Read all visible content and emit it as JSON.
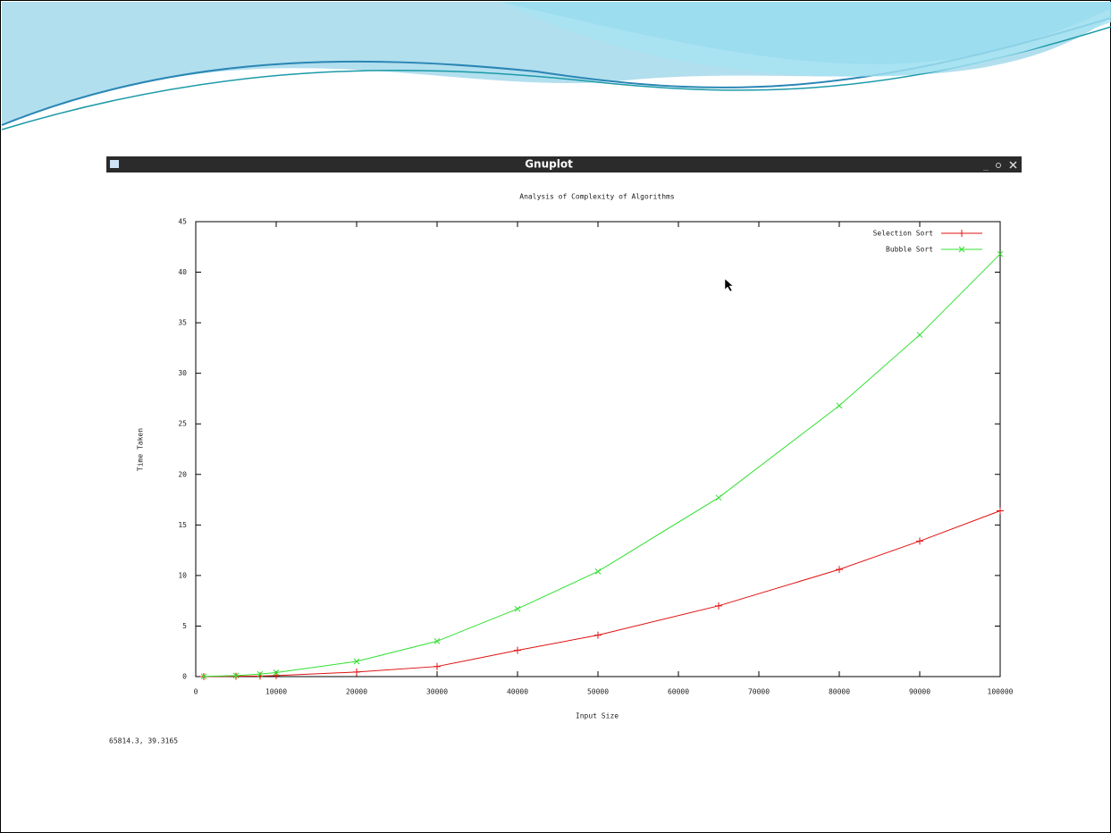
{
  "window": {
    "title": "Gnuplot",
    "status": "65814.3,  39.3165"
  },
  "chart_data": {
    "type": "line",
    "title": "Analysis of Complexity of Algorithms",
    "x_label": "Input Size",
    "y_label": "Time Taken",
    "x": [
      1000,
      5000,
      8000,
      10000,
      20000,
      30000,
      40000,
      50000,
      65000,
      80000,
      90000,
      100000
    ],
    "series": [
      {
        "name": "Selection Sort",
        "color": "#e01010",
        "marker": "plus",
        "values": [
          0,
          0.03,
          0.06,
          0.1,
          0.45,
          1.0,
          2.6,
          4.1,
          7.0,
          10.6,
          13.4,
          16.4
        ]
      },
      {
        "name": "Bubble Sort",
        "color": "#30e030",
        "marker": "cross",
        "values": [
          0.02,
          0.1,
          0.25,
          0.4,
          1.5,
          3.5,
          6.7,
          10.4,
          17.7,
          26.8,
          33.8,
          41.8
        ]
      }
    ],
    "xlim": [
      0,
      100000
    ],
    "xticks": [
      0,
      10000,
      20000,
      30000,
      40000,
      50000,
      60000,
      70000,
      80000,
      90000,
      100000
    ],
    "ylim": [
      0,
      45
    ],
    "yticks": [
      0,
      5,
      10,
      15,
      20,
      25,
      30,
      35,
      40,
      45
    ],
    "grid": false,
    "legend": "top-right"
  }
}
